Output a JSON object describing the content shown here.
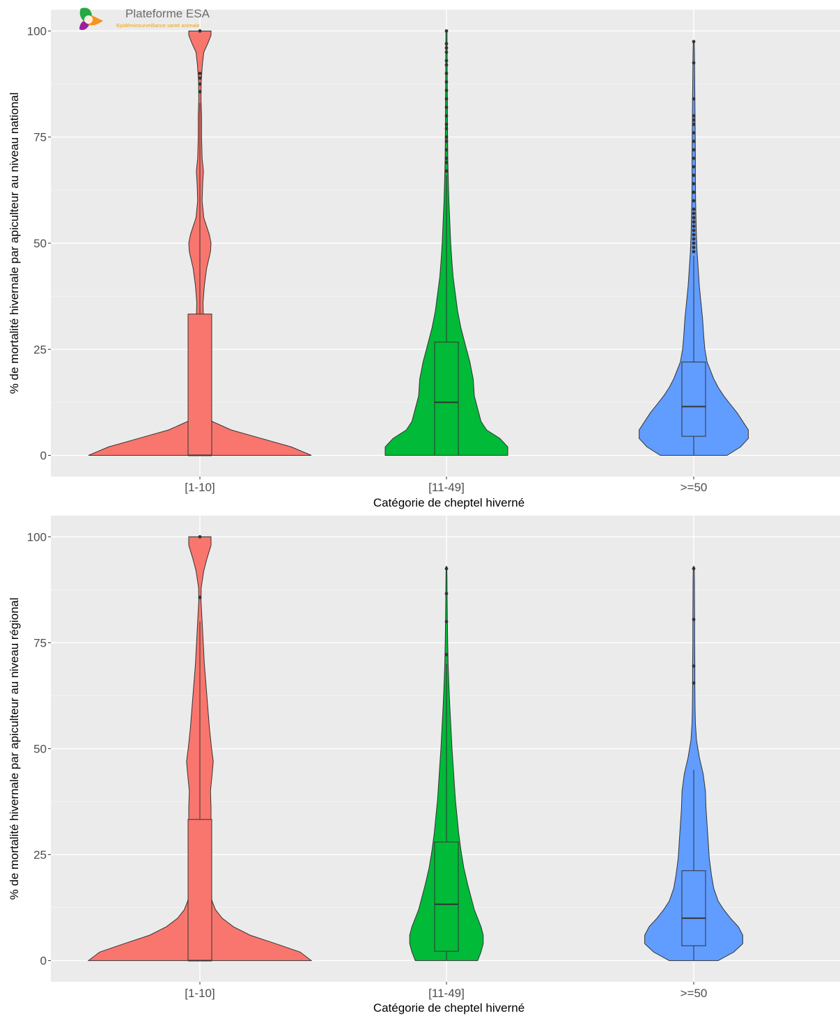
{
  "logo": {
    "title": "Plateforme ESA",
    "subtitle": "Epidémiosurveillance santé animale",
    "colors": {
      "green": "#27a844",
      "orange": "#f7941d",
      "purple": "#9b1fa0"
    }
  },
  "chart_data": [
    {
      "type": "violin",
      "panel": "top",
      "xlabel": "Catégorie de cheptel hiverné",
      "ylabel": "% de mortalité hivernale par apiculteur au niveau national",
      "ylim": [
        -5,
        105
      ],
      "yticks": [
        0,
        25,
        50,
        75,
        100
      ],
      "grid": true,
      "background": "#ebebeb",
      "categories": [
        "[1-10]",
        "[11-49]",
        ">=50"
      ],
      "colors": [
        "#f8766d",
        "#00ba38",
        "#619cff"
      ],
      "violins": [
        {
          "category": "[1-10]",
          "ymin": 0,
          "ymax": 100,
          "profile": [
            [
              0,
              1.0
            ],
            [
              2,
              0.82
            ],
            [
              4,
              0.55
            ],
            [
              6,
              0.28
            ],
            [
              8,
              0.11
            ],
            [
              10,
              0.06
            ],
            [
              14,
              0.045
            ],
            [
              18,
              0.04
            ],
            [
              20,
              0.05
            ],
            [
              22,
              0.055
            ],
            [
              24,
              0.045
            ],
            [
              28,
              0.035
            ],
            [
              32,
              0.032
            ],
            [
              36,
              0.028
            ],
            [
              40,
              0.04
            ],
            [
              44,
              0.06
            ],
            [
              48,
              0.095
            ],
            [
              50,
              0.1
            ],
            [
              52,
              0.085
            ],
            [
              56,
              0.035
            ],
            [
              60,
              0.02
            ],
            [
              64,
              0.025
            ],
            [
              67,
              0.032
            ],
            [
              70,
              0.02
            ],
            [
              75,
              0.015
            ],
            [
              80,
              0.015
            ],
            [
              84,
              0.01
            ],
            [
              88,
              0.012
            ],
            [
              92,
              0.022
            ],
            [
              95,
              0.035
            ],
            [
              97,
              0.07
            ],
            [
              99,
              0.1
            ],
            [
              100,
              0.1
            ]
          ],
          "box": {
            "q1": 0,
            "median": 0,
            "q3": 33.3,
            "whisker_low": 0,
            "whisker_high": 83
          },
          "outliers": [
            85.7,
            87.5,
            88.9,
            90,
            100
          ]
        },
        {
          "category": "[11-49]",
          "ymin": 0,
          "ymax": 100,
          "profile": [
            [
              0,
              0.55
            ],
            [
              2,
              0.55
            ],
            [
              4,
              0.48
            ],
            [
              6,
              0.36
            ],
            [
              8,
              0.31
            ],
            [
              10,
              0.29
            ],
            [
              14,
              0.25
            ],
            [
              18,
              0.24
            ],
            [
              22,
              0.21
            ],
            [
              26,
              0.17
            ],
            [
              30,
              0.13
            ],
            [
              34,
              0.1
            ],
            [
              38,
              0.08
            ],
            [
              42,
              0.06
            ],
            [
              46,
              0.048
            ],
            [
              50,
              0.038
            ],
            [
              55,
              0.03
            ],
            [
              60,
              0.022
            ],
            [
              65,
              0.016
            ],
            [
              70,
              0.012
            ],
            [
              75,
              0.01
            ],
            [
              80,
              0.009
            ],
            [
              85,
              0.008
            ],
            [
              90,
              0.007
            ],
            [
              95,
              0.006
            ],
            [
              100,
              0.005
            ]
          ],
          "box": {
            "q1": 0,
            "median": 12.5,
            "q3": 26.7,
            "whisker_low": 0,
            "whisker_high": 66
          },
          "outliers": [
            67,
            69,
            70,
            72,
            74,
            75,
            77,
            78,
            80,
            82,
            84,
            86,
            88,
            90,
            92,
            93,
            95,
            96,
            97,
            100
          ]
        },
        {
          "category": ">=50",
          "ymin": 0,
          "ymax": 97.5,
          "profile": [
            [
              0,
              0.3
            ],
            [
              2,
              0.42
            ],
            [
              4,
              0.49
            ],
            [
              6,
              0.49
            ],
            [
              8,
              0.44
            ],
            [
              10,
              0.39
            ],
            [
              12,
              0.33
            ],
            [
              14,
              0.27
            ],
            [
              16,
              0.22
            ],
            [
              18,
              0.18
            ],
            [
              20,
              0.15
            ],
            [
              22,
              0.12
            ],
            [
              25,
              0.1
            ],
            [
              28,
              0.09
            ],
            [
              32,
              0.08
            ],
            [
              36,
              0.065
            ],
            [
              40,
              0.05
            ],
            [
              44,
              0.04
            ],
            [
              48,
              0.03
            ],
            [
              52,
              0.024
            ],
            [
              56,
              0.02
            ],
            [
              60,
              0.017
            ],
            [
              65,
              0.015
            ],
            [
              70,
              0.015
            ],
            [
              75,
              0.014
            ],
            [
              80,
              0.012
            ],
            [
              85,
              0.01
            ],
            [
              90,
              0.008
            ],
            [
              95,
              0.006
            ],
            [
              97.5,
              0.004
            ]
          ],
          "box": {
            "q1": 4.5,
            "median": 11.5,
            "q3": 22,
            "whisker_low": 0,
            "whisker_high": 47
          },
          "outliers": [
            48,
            49,
            50,
            51,
            52,
            53,
            54,
            55,
            56,
            57,
            58,
            60,
            62,
            64,
            66,
            68,
            70,
            72,
            74,
            76,
            78,
            79,
            80,
            84,
            92.5,
            97.5
          ]
        }
      ]
    },
    {
      "type": "violin",
      "panel": "bottom",
      "xlabel": "Catégorie de cheptel hiverné",
      "ylabel": "% de mortalité hivernale par apiculteur au niveau régional",
      "ylim": [
        -5,
        105
      ],
      "yticks": [
        0,
        25,
        50,
        75,
        100
      ],
      "grid": true,
      "background": "#ebebeb",
      "categories": [
        "[1-10]",
        "[11-49]",
        ">=50"
      ],
      "colors": [
        "#f8766d",
        "#00ba38",
        "#619cff"
      ],
      "violins": [
        {
          "category": "[1-10]",
          "ymin": 0,
          "ymax": 100,
          "profile": [
            [
              0,
              1.0
            ],
            [
              2,
              0.9
            ],
            [
              4,
              0.68
            ],
            [
              6,
              0.45
            ],
            [
              8,
              0.3
            ],
            [
              10,
              0.2
            ],
            [
              12,
              0.14
            ],
            [
              14,
              0.11
            ],
            [
              17,
              0.09
            ],
            [
              20,
              0.085
            ],
            [
              24,
              0.08
            ],
            [
              28,
              0.09
            ],
            [
              32,
              0.1
            ],
            [
              36,
              0.1
            ],
            [
              40,
              0.095
            ],
            [
              44,
              0.11
            ],
            [
              47,
              0.12
            ],
            [
              50,
              0.105
            ],
            [
              55,
              0.085
            ],
            [
              60,
              0.07
            ],
            [
              65,
              0.055
            ],
            [
              70,
              0.04
            ],
            [
              75,
              0.03
            ],
            [
              80,
              0.02
            ],
            [
              85,
              0.01
            ],
            [
              88,
              0.012
            ],
            [
              92,
              0.035
            ],
            [
              95,
              0.065
            ],
            [
              98,
              0.1
            ],
            [
              100,
              0.1
            ]
          ],
          "box": {
            "q1": 0,
            "median": 0,
            "q3": 33.3,
            "whisker_low": 0,
            "whisker_high": 80
          },
          "outliers": [
            85.7,
            100
          ]
        },
        {
          "category": "[11-49]",
          "ymin": 0,
          "ymax": 93,
          "profile": [
            [
              0,
              0.28
            ],
            [
              2,
              0.31
            ],
            [
              4,
              0.33
            ],
            [
              6,
              0.33
            ],
            [
              8,
              0.31
            ],
            [
              10,
              0.28
            ],
            [
              12,
              0.25
            ],
            [
              15,
              0.22
            ],
            [
              18,
              0.19
            ],
            [
              22,
              0.155
            ],
            [
              26,
              0.13
            ],
            [
              30,
              0.11
            ],
            [
              34,
              0.095
            ],
            [
              38,
              0.08
            ],
            [
              42,
              0.07
            ],
            [
              46,
              0.06
            ],
            [
              50,
              0.05
            ],
            [
              55,
              0.04
            ],
            [
              60,
              0.03
            ],
            [
              65,
              0.022
            ],
            [
              70,
              0.015
            ],
            [
              75,
              0.011
            ],
            [
              80,
              0.008
            ],
            [
              85,
              0.006
            ],
            [
              90,
              0.005
            ],
            [
              93,
              0.003
            ]
          ],
          "box": {
            "q1": 2.2,
            "median": 13.3,
            "q3": 28,
            "whisker_low": 0,
            "whisker_high": 70
          },
          "outliers": [
            72.2,
            80,
            86.6,
            92.5
          ]
        },
        {
          "category": ">=50",
          "ymin": 0,
          "ymax": 93,
          "profile": [
            [
              0,
              0.22
            ],
            [
              2,
              0.36
            ],
            [
              4,
              0.44
            ],
            [
              6,
              0.44
            ],
            [
              8,
              0.4
            ],
            [
              10,
              0.33
            ],
            [
              12,
              0.27
            ],
            [
              14,
              0.22
            ],
            [
              17,
              0.18
            ],
            [
              20,
              0.16
            ],
            [
              24,
              0.14
            ],
            [
              28,
              0.13
            ],
            [
              32,
              0.12
            ],
            [
              36,
              0.11
            ],
            [
              40,
              0.105
            ],
            [
              44,
              0.085
            ],
            [
              48,
              0.05
            ],
            [
              52,
              0.025
            ],
            [
              56,
              0.015
            ],
            [
              60,
              0.012
            ],
            [
              65,
              0.01
            ],
            [
              70,
              0.01
            ],
            [
              75,
              0.008
            ],
            [
              80,
              0.008
            ],
            [
              85,
              0.007
            ],
            [
              90,
              0.006
            ],
            [
              93,
              0.004
            ]
          ],
          "box": {
            "q1": 3.5,
            "median": 10,
            "q3": 21.2,
            "whisker_low": 0,
            "whisker_high": 45
          },
          "outliers": [
            65.5,
            69.5,
            80.5,
            92.5
          ]
        }
      ]
    }
  ]
}
